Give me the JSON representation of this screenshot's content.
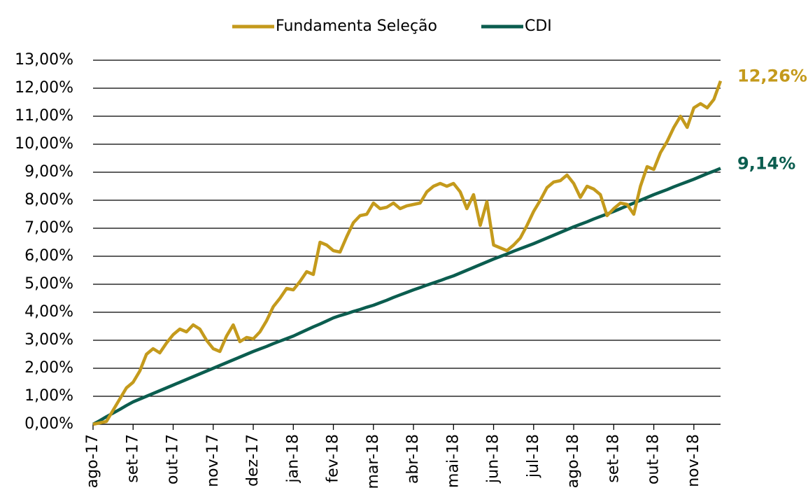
{
  "chart_data": {
    "type": "line",
    "categories": [
      "ago-17",
      null,
      null,
      null,
      null,
      null,
      "set-17",
      null,
      null,
      null,
      null,
      null,
      "out-17",
      null,
      null,
      null,
      null,
      null,
      "nov-17",
      null,
      null,
      null,
      null,
      null,
      "dez-17",
      null,
      null,
      null,
      null,
      null,
      "jan-18",
      null,
      null,
      null,
      null,
      null,
      "fev-18",
      null,
      null,
      null,
      null,
      null,
      "mar-18",
      null,
      null,
      null,
      null,
      null,
      "abr-18",
      null,
      null,
      null,
      null,
      null,
      "mai-18",
      null,
      null,
      null,
      null,
      null,
      "jun-18",
      null,
      null,
      null,
      null,
      null,
      "jul-18",
      null,
      null,
      null,
      null,
      null,
      "ago-18",
      null,
      null,
      null,
      null,
      null,
      "set-18",
      null,
      null,
      null,
      null,
      null,
      "out-18",
      null,
      null,
      null,
      null,
      null,
      "nov-18",
      null,
      null,
      null,
      null
    ],
    "series": [
      {
        "name": "Fundamenta Seleção",
        "color": "#C49A1C",
        "end_label": "12,26%",
        "values": [
          0,
          0.05,
          0.1,
          0.5,
          0.9,
          1.3,
          1.5,
          1.9,
          2.5,
          2.7,
          2.55,
          2.9,
          3.2,
          3.4,
          3.3,
          3.55,
          3.4,
          3.0,
          2.7,
          2.6,
          3.15,
          3.55,
          2.95,
          3.1,
          3.05,
          3.3,
          3.7,
          4.2,
          4.5,
          4.85,
          4.8,
          5.1,
          5.45,
          5.35,
          6.5,
          6.4,
          6.2,
          6.15,
          6.7,
          7.2,
          7.45,
          7.5,
          7.9,
          7.7,
          7.75,
          7.9,
          7.7,
          7.8,
          7.85,
          7.9,
          8.3,
          8.5,
          8.6,
          8.5,
          8.6,
          8.3,
          7.7,
          8.2,
          7.1,
          7.95,
          6.4,
          6.3,
          6.2,
          6.4,
          6.65,
          7.1,
          7.6,
          8.0,
          8.45,
          8.65,
          8.7,
          8.9,
          8.6,
          8.1,
          8.5,
          8.4,
          8.2,
          7.45,
          7.7,
          7.9,
          7.85,
          7.5,
          8.5,
          9.2,
          9.1,
          9.7,
          10.1,
          10.6,
          11.0,
          10.6,
          11.3,
          11.45,
          11.3,
          11.6,
          12.26
        ]
      },
      {
        "name": "CDI",
        "color": "#0B5D4F",
        "end_label": "9,14%",
        "values": [
          0,
          0.13,
          0.27,
          0.4,
          0.53,
          0.67,
          0.8,
          0.9,
          1.0,
          1.1,
          1.2,
          1.3,
          1.4,
          1.5,
          1.6,
          1.7,
          1.8,
          1.9,
          2.0,
          2.1,
          2.2,
          2.3,
          2.4,
          2.5,
          2.6,
          2.69,
          2.78,
          2.88,
          2.97,
          3.06,
          3.15,
          3.26,
          3.37,
          3.48,
          3.58,
          3.69,
          3.8,
          3.88,
          3.95,
          4.03,
          4.1,
          4.18,
          4.25,
          4.34,
          4.43,
          4.53,
          4.62,
          4.71,
          4.8,
          4.88,
          4.97,
          5.05,
          5.13,
          5.22,
          5.3,
          5.4,
          5.5,
          5.6,
          5.7,
          5.8,
          5.9,
          5.99,
          6.08,
          6.18,
          6.27,
          6.36,
          6.45,
          6.55,
          6.65,
          6.75,
          6.85,
          6.95,
          7.05,
          7.14,
          7.23,
          7.33,
          7.42,
          7.51,
          7.6,
          7.7,
          7.8,
          7.9,
          8.0,
          8.1,
          8.2,
          8.29,
          8.38,
          8.48,
          8.57,
          8.66,
          8.75,
          8.85,
          8.95,
          9.04,
          9.14
        ]
      }
    ],
    "ylim": [
      0,
      13
    ],
    "yticks": [
      {
        "value": 0,
        "label": "0,00%"
      },
      {
        "value": 1,
        "label": "1,00%"
      },
      {
        "value": 2,
        "label": "2,00%"
      },
      {
        "value": 3,
        "label": "3,00%"
      },
      {
        "value": 4,
        "label": "4,00%"
      },
      {
        "value": 5,
        "label": "5,00%"
      },
      {
        "value": 6,
        "label": "6,00%"
      },
      {
        "value": 7,
        "label": "7,00%"
      },
      {
        "value": 8,
        "label": "8,00%"
      },
      {
        "value": 9,
        "label": "9,00%"
      },
      {
        "value": 10,
        "label": "10,00%"
      },
      {
        "value": 11,
        "label": "11,00%"
      },
      {
        "value": 12,
        "label": "12,00%"
      },
      {
        "value": 13,
        "label": "13,00%"
      }
    ],
    "grid": true,
    "legend": "top"
  }
}
